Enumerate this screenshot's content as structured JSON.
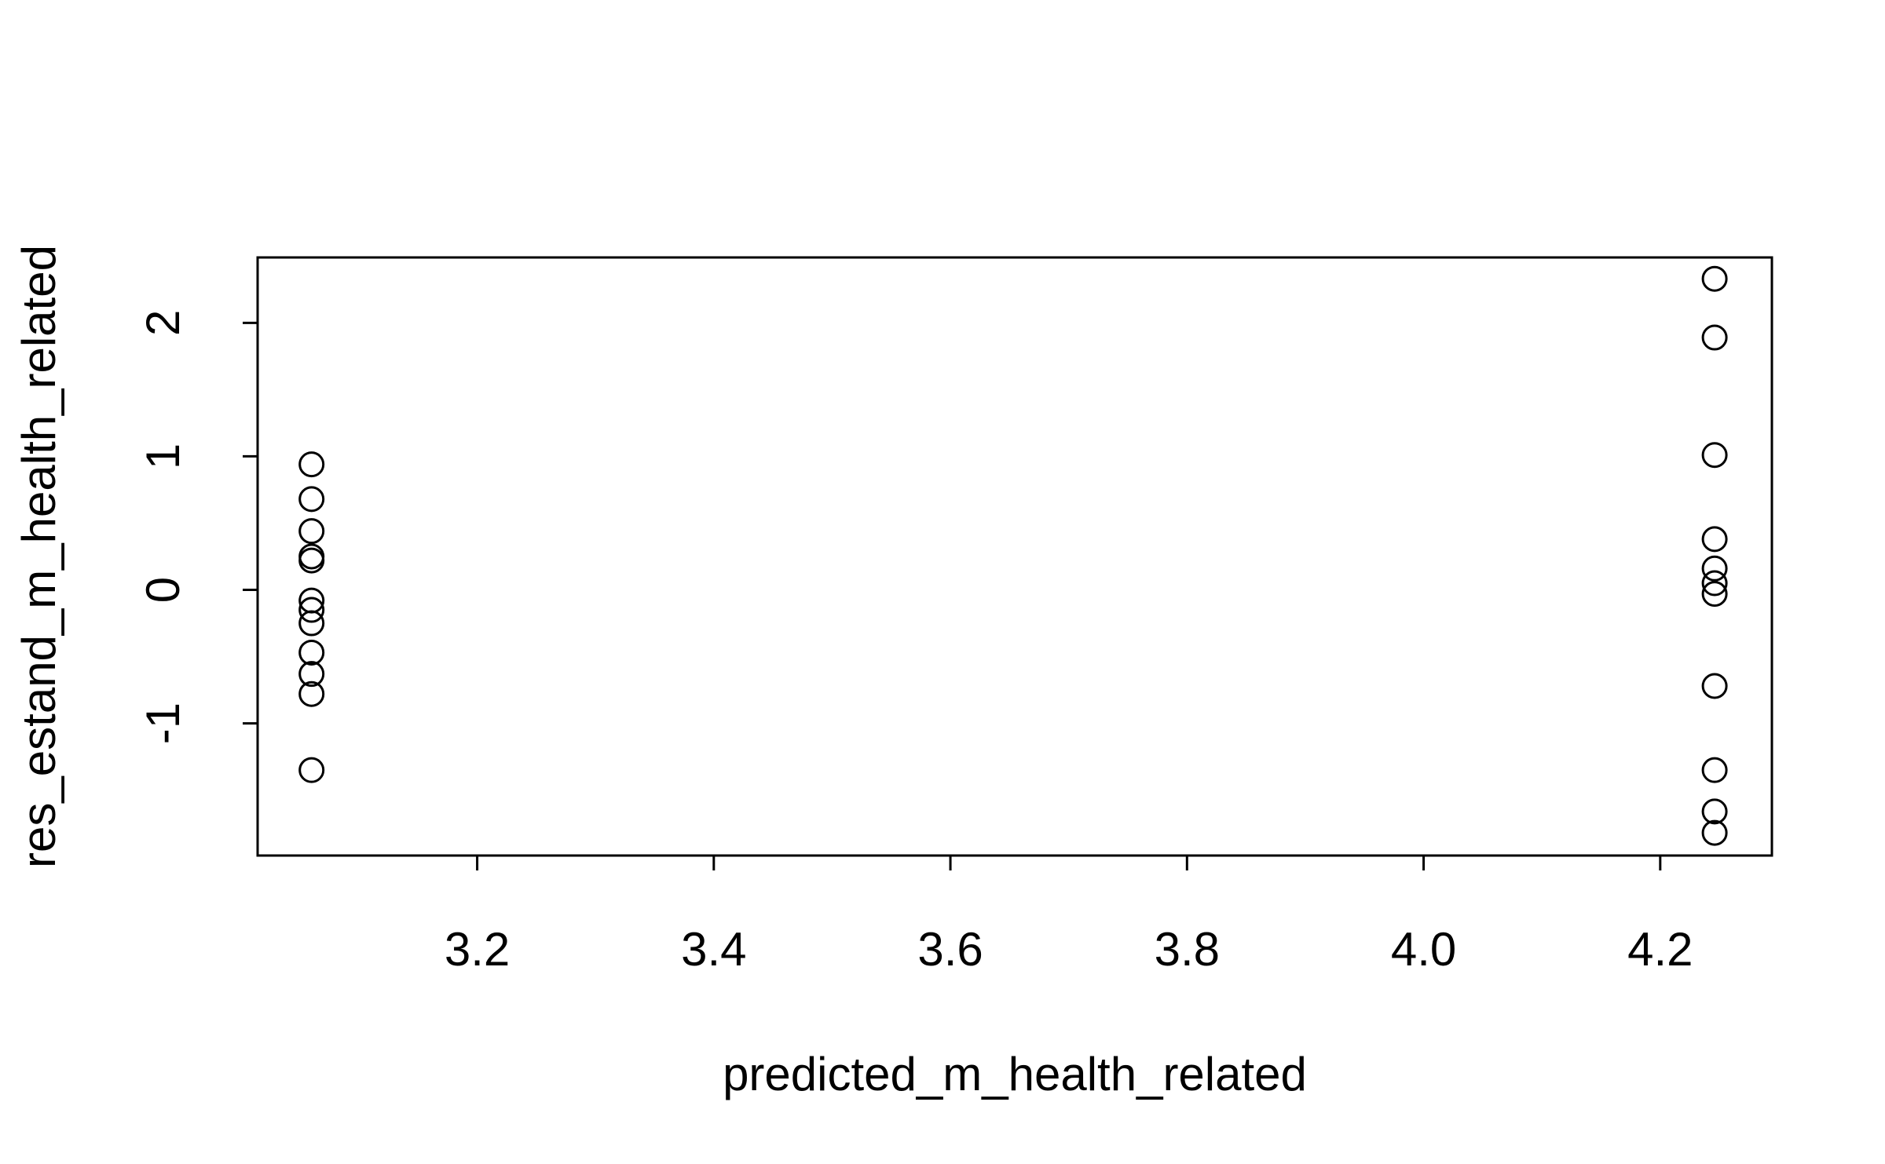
{
  "chart_data": {
    "type": "scatter",
    "xlabel": "predicted_m_health_related",
    "ylabel": "res_estand_m_health_related",
    "x": [
      3.06,
      3.06,
      3.06,
      3.06,
      3.06,
      3.06,
      3.06,
      3.06,
      3.06,
      3.06,
      3.06,
      3.06,
      4.246,
      4.246,
      4.246,
      4.246,
      4.246,
      4.246,
      4.246,
      4.246,
      4.246,
      4.246,
      4.246
    ],
    "values": [
      0.94,
      0.68,
      0.44,
      0.25,
      0.22,
      -0.08,
      -0.15,
      -0.25,
      -0.47,
      -0.63,
      -0.78,
      -1.35,
      2.33,
      1.89,
      1.01,
      0.38,
      0.16,
      0.05,
      -0.03,
      -0.72,
      -1.35,
      -1.66,
      -1.82
    ],
    "color": "#000000",
    "xlim": [
      3.0144,
      4.2944
    ],
    "ylim": [
      -1.99,
      2.49
    ],
    "xticks": [
      3.2,
      3.4,
      3.6,
      3.8,
      {
        "value": 4,
        "label": "4.0"
      },
      4.2
    ],
    "yticks": [
      -1,
      0,
      1,
      2
    ],
    "grid": false
  }
}
